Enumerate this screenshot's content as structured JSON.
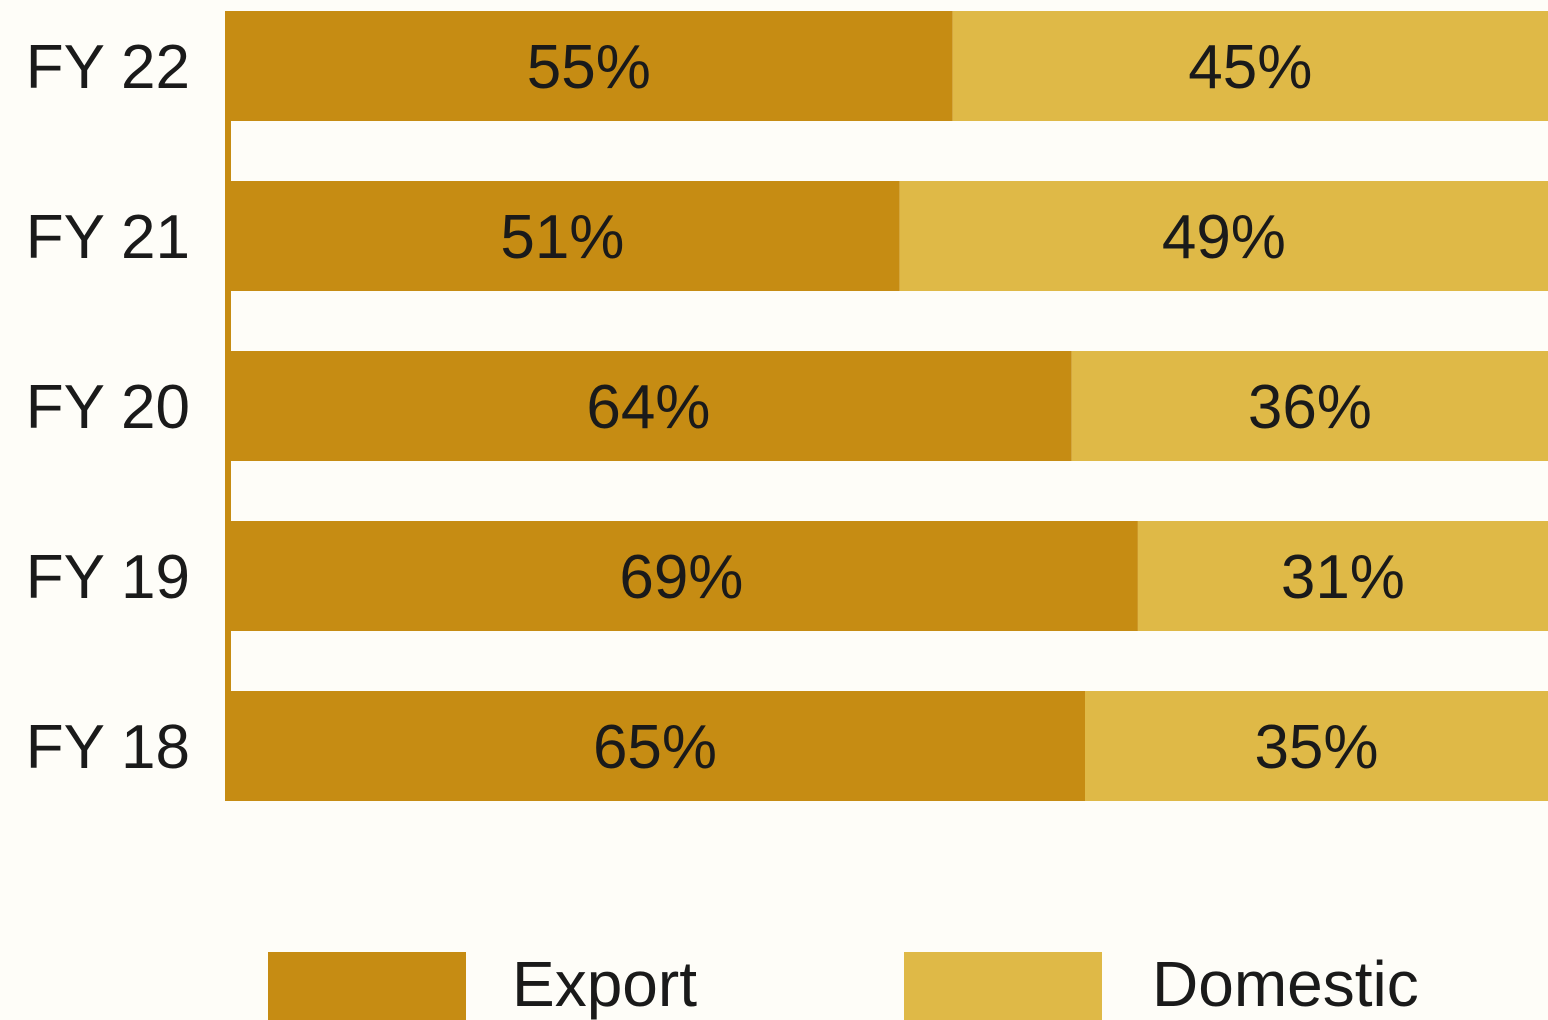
{
  "chart_data": {
    "type": "bar",
    "orientation": "horizontal",
    "stacked": true,
    "percent_stacked": true,
    "categories": [
      "FY 22",
      "FY 21",
      "FY 20",
      "FY 19",
      "FY 18"
    ],
    "series": [
      {
        "name": "Export",
        "color": "#c68c13",
        "values": [
          55,
          51,
          64,
          69,
          65
        ],
        "labels": [
          "55%",
          "51%",
          "64%",
          "69%",
          "65%"
        ]
      },
      {
        "name": "Domestic",
        "color": "#dfb947",
        "values": [
          45,
          49,
          36,
          31,
          35
        ],
        "labels": [
          "45%",
          "49%",
          "36%",
          "31%",
          "35%"
        ]
      }
    ],
    "xlim": [
      0,
      100
    ],
    "grid": false,
    "legend_position": "bottom"
  }
}
